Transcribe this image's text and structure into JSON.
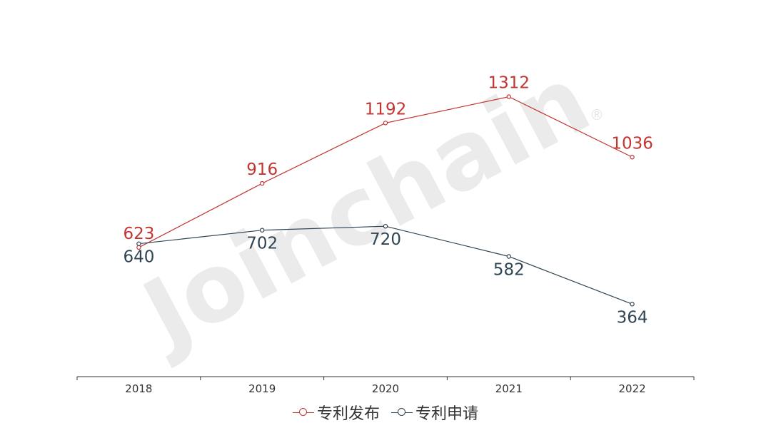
{
  "colors": {
    "publish": "#c23531",
    "apply": "#2f4554",
    "axis": "#333333",
    "watermark": "#e6e6e6"
  },
  "watermark": "Joinchain",
  "chart_data": {
    "type": "line",
    "categories": [
      "2018",
      "2019",
      "2020",
      "2021",
      "2022"
    ],
    "series": [
      {
        "name": "专利发布",
        "values": [
          623,
          916,
          1192,
          1312,
          1036
        ]
      },
      {
        "name": "专利申请",
        "values": [
          640,
          702,
          720,
          582,
          364
        ]
      }
    ],
    "ylim": [
      0,
      1400
    ],
    "grid": false,
    "legend": "bottom-center"
  }
}
